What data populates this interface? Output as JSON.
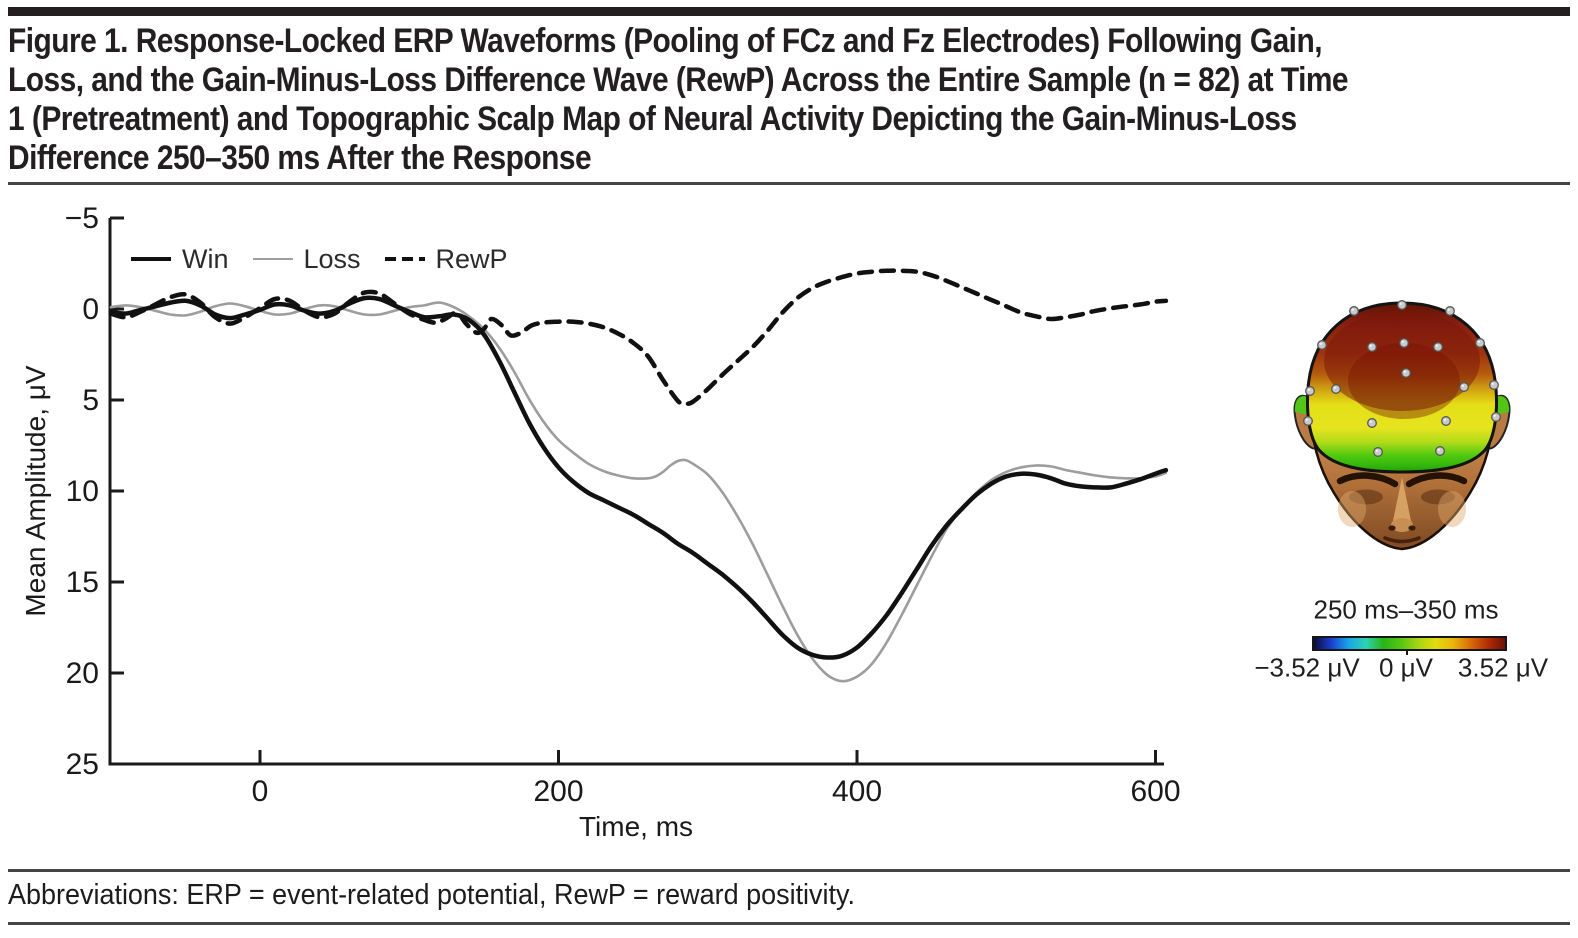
{
  "figure": {
    "title_lines": [
      "Figure 1. Response-Locked ERP Waveforms (Pooling of FCz and Fz Electrodes) Following Gain,",
      "Loss, and the Gain-Minus-Loss Difference Wave (RewP) Across the Entire Sample (n = 82) at Time",
      "1 (Pretreatment) and Topographic Scalp Map of Neural Activity Depicting the Gain-Minus-Loss",
      "Difference 250–350 ms After the Response"
    ],
    "abbreviations": "Abbreviations: ERP = event-related potential, RewP = reward positivity."
  },
  "chart_data": {
    "type": "line",
    "title": "",
    "xlabel": "Time, ms",
    "ylabel": "Mean Amplitude, μV",
    "x_range": [
      -100,
      610
    ],
    "y_range": [
      -5,
      25
    ],
    "y_axis_inverted": true,
    "grid": false,
    "legend_position": "top-left-inside",
    "xticks": [
      0,
      200,
      400,
      600
    ],
    "yticks": [
      -5,
      0,
      5,
      10,
      15,
      20,
      25
    ],
    "axis_color": "#1a1a1a",
    "series": [
      {
        "name": "Loss",
        "style": "solid",
        "color": "#9d9d9d",
        "width": 2.6,
        "points": [
          [
            -100,
            -0.1
          ],
          [
            -90,
            -0.2
          ],
          [
            -80,
            -0.1
          ],
          [
            -70,
            0.1
          ],
          [
            -60,
            0.3
          ],
          [
            -50,
            0.35
          ],
          [
            -40,
            0.15
          ],
          [
            -30,
            -0.15
          ],
          [
            -20,
            -0.3
          ],
          [
            -10,
            -0.15
          ],
          [
            0,
            0.1
          ],
          [
            10,
            0.3
          ],
          [
            20,
            0.25
          ],
          [
            30,
            0.0
          ],
          [
            40,
            -0.2
          ],
          [
            50,
            -0.15
          ],
          [
            60,
            0.1
          ],
          [
            70,
            0.3
          ],
          [
            80,
            0.3
          ],
          [
            90,
            0.1
          ],
          [
            100,
            -0.1
          ],
          [
            110,
            -0.2
          ],
          [
            120,
            -0.35
          ],
          [
            130,
            -0.1
          ],
          [
            140,
            0.4
          ],
          [
            150,
            1.1
          ],
          [
            160,
            2.1
          ],
          [
            170,
            3.4
          ],
          [
            180,
            4.9
          ],
          [
            190,
            6.2
          ],
          [
            200,
            7.2
          ],
          [
            210,
            7.9
          ],
          [
            220,
            8.5
          ],
          [
            230,
            8.9
          ],
          [
            240,
            9.15
          ],
          [
            250,
            9.3
          ],
          [
            260,
            9.3
          ],
          [
            265,
            9.2
          ],
          [
            270,
            8.95
          ],
          [
            275,
            8.6
          ],
          [
            280,
            8.35
          ],
          [
            285,
            8.3
          ],
          [
            290,
            8.5
          ],
          [
            300,
            9.1
          ],
          [
            310,
            10.1
          ],
          [
            320,
            11.4
          ],
          [
            330,
            12.9
          ],
          [
            340,
            14.6
          ],
          [
            350,
            16.3
          ],
          [
            360,
            17.9
          ],
          [
            370,
            19.2
          ],
          [
            380,
            20.1
          ],
          [
            390,
            20.45
          ],
          [
            400,
            20.2
          ],
          [
            410,
            19.5
          ],
          [
            420,
            18.3
          ],
          [
            430,
            16.8
          ],
          [
            440,
            15.2
          ],
          [
            450,
            13.6
          ],
          [
            460,
            12.1
          ],
          [
            470,
            11.0
          ],
          [
            480,
            10.1
          ],
          [
            490,
            9.4
          ],
          [
            500,
            8.95
          ],
          [
            510,
            8.7
          ],
          [
            520,
            8.6
          ],
          [
            530,
            8.65
          ],
          [
            540,
            8.85
          ],
          [
            550,
            9.0
          ],
          [
            560,
            9.15
          ],
          [
            570,
            9.25
          ],
          [
            580,
            9.3
          ],
          [
            590,
            9.3
          ],
          [
            600,
            9.2
          ],
          [
            607,
            9.0
          ]
        ]
      },
      {
        "name": "Win",
        "style": "solid",
        "color": "#111111",
        "width": 4.5,
        "points": [
          [
            -100,
            0.15
          ],
          [
            -90,
            0.25
          ],
          [
            -80,
            0.05
          ],
          [
            -70,
            -0.15
          ],
          [
            -60,
            -0.35
          ],
          [
            -50,
            -0.45
          ],
          [
            -40,
            -0.2
          ],
          [
            -30,
            0.3
          ],
          [
            -20,
            0.5
          ],
          [
            -10,
            0.3
          ],
          [
            0,
            0.05
          ],
          [
            10,
            -0.25
          ],
          [
            20,
            -0.2
          ],
          [
            30,
            0.1
          ],
          [
            40,
            0.25
          ],
          [
            50,
            0.1
          ],
          [
            60,
            -0.3
          ],
          [
            70,
            -0.6
          ],
          [
            80,
            -0.55
          ],
          [
            90,
            -0.2
          ],
          [
            100,
            0.15
          ],
          [
            110,
            0.45
          ],
          [
            120,
            0.4
          ],
          [
            130,
            0.3
          ],
          [
            140,
            0.6
          ],
          [
            150,
            1.4
          ],
          [
            160,
            2.8
          ],
          [
            170,
            4.5
          ],
          [
            180,
            6.2
          ],
          [
            190,
            7.6
          ],
          [
            200,
            8.7
          ],
          [
            210,
            9.5
          ],
          [
            220,
            10.1
          ],
          [
            230,
            10.5
          ],
          [
            240,
            10.9
          ],
          [
            250,
            11.3
          ],
          [
            260,
            11.8
          ],
          [
            270,
            12.3
          ],
          [
            280,
            12.9
          ],
          [
            290,
            13.4
          ],
          [
            300,
            14.0
          ],
          [
            310,
            14.6
          ],
          [
            320,
            15.3
          ],
          [
            330,
            16.1
          ],
          [
            340,
            17.0
          ],
          [
            350,
            17.9
          ],
          [
            360,
            18.6
          ],
          [
            370,
            19.0
          ],
          [
            380,
            19.15
          ],
          [
            390,
            19.05
          ],
          [
            400,
            18.6
          ],
          [
            410,
            17.8
          ],
          [
            420,
            16.8
          ],
          [
            430,
            15.6
          ],
          [
            440,
            14.3
          ],
          [
            450,
            13.0
          ],
          [
            460,
            11.9
          ],
          [
            470,
            11.0
          ],
          [
            480,
            10.2
          ],
          [
            490,
            9.6
          ],
          [
            500,
            9.2
          ],
          [
            510,
            9.05
          ],
          [
            520,
            9.1
          ],
          [
            530,
            9.3
          ],
          [
            540,
            9.6
          ],
          [
            550,
            9.75
          ],
          [
            560,
            9.8
          ],
          [
            570,
            9.8
          ],
          [
            580,
            9.6
          ],
          [
            590,
            9.35
          ],
          [
            600,
            9.05
          ],
          [
            607,
            8.85
          ]
        ]
      },
      {
        "name": "RewP",
        "style": "dashed",
        "color": "#111111",
        "width": 4.5,
        "points": [
          [
            -100,
            0.25
          ],
          [
            -90,
            0.45
          ],
          [
            -80,
            0.15
          ],
          [
            -70,
            -0.25
          ],
          [
            -60,
            -0.65
          ],
          [
            -50,
            -0.8
          ],
          [
            -40,
            -0.35
          ],
          [
            -30,
            0.45
          ],
          [
            -20,
            0.8
          ],
          [
            -10,
            0.45
          ],
          [
            0,
            -0.05
          ],
          [
            10,
            -0.55
          ],
          [
            20,
            -0.45
          ],
          [
            30,
            0.1
          ],
          [
            40,
            0.45
          ],
          [
            50,
            0.25
          ],
          [
            60,
            -0.4
          ],
          [
            70,
            -0.9
          ],
          [
            80,
            -0.85
          ],
          [
            90,
            -0.3
          ],
          [
            100,
            0.25
          ],
          [
            110,
            0.6
          ],
          [
            118,
            0.75
          ],
          [
            125,
            0.5
          ],
          [
            132,
            0.2
          ],
          [
            138,
            0.8
          ],
          [
            145,
            1.3
          ],
          [
            150,
            1.1
          ],
          [
            155,
            0.55
          ],
          [
            162,
            0.9
          ],
          [
            168,
            1.45
          ],
          [
            175,
            1.3
          ],
          [
            182,
            0.9
          ],
          [
            190,
            0.75
          ],
          [
            200,
            0.7
          ],
          [
            210,
            0.7
          ],
          [
            220,
            0.8
          ],
          [
            230,
            1.0
          ],
          [
            240,
            1.35
          ],
          [
            250,
            1.85
          ],
          [
            260,
            2.6
          ],
          [
            270,
            3.9
          ],
          [
            280,
            5.05
          ],
          [
            285,
            5.2
          ],
          [
            290,
            5.1
          ],
          [
            300,
            4.4
          ],
          [
            310,
            3.6
          ],
          [
            320,
            2.85
          ],
          [
            330,
            2.1
          ],
          [
            340,
            1.2
          ],
          [
            350,
            0.2
          ],
          [
            360,
            -0.6
          ],
          [
            370,
            -1.15
          ],
          [
            380,
            -1.5
          ],
          [
            390,
            -1.75
          ],
          [
            400,
            -1.95
          ],
          [
            410,
            -2.05
          ],
          [
            420,
            -2.1
          ],
          [
            430,
            -2.1
          ],
          [
            440,
            -2.05
          ],
          [
            450,
            -1.85
          ],
          [
            460,
            -1.55
          ],
          [
            470,
            -1.2
          ],
          [
            480,
            -0.85
          ],
          [
            490,
            -0.5
          ],
          [
            500,
            -0.15
          ],
          [
            510,
            0.2
          ],
          [
            520,
            0.4
          ],
          [
            530,
            0.55
          ],
          [
            540,
            0.45
          ],
          [
            550,
            0.3
          ],
          [
            560,
            0.1
          ],
          [
            575,
            -0.1
          ],
          [
            590,
            -0.25
          ],
          [
            600,
            -0.4
          ],
          [
            607,
            -0.45
          ]
        ]
      }
    ]
  },
  "topomap": {
    "time_window": "250 ms–350 ms",
    "colorbar": {
      "min_label": "−3.52 μV",
      "mid_label": "0 μV",
      "max_label": "3.52 μV",
      "colormap": "jet",
      "stops": [
        "#0b0b3a",
        "#1b3fd0",
        "#19a6e8",
        "#2fd2b2",
        "#27b514",
        "#57c613",
        "#a8d414",
        "#e0dc12",
        "#eab50c",
        "#d96c08",
        "#b42e06",
        "#6e0f04"
      ]
    },
    "scale_semantics": {
      "positive_peak": "#8e2410",
      "zero": "#2ab212",
      "negative": "#1b3fd0"
    },
    "electrodes": [
      [
        62,
        14
      ],
      [
        110,
        8
      ],
      [
        158,
        14
      ],
      [
        30,
        48
      ],
      [
        80,
        50
      ],
      [
        112,
        46
      ],
      [
        146,
        50
      ],
      [
        188,
        46
      ],
      [
        18,
        94
      ],
      [
        44,
        92
      ],
      [
        114,
        76
      ],
      [
        172,
        90
      ],
      [
        202,
        88
      ],
      [
        80,
        126
      ],
      [
        154,
        124
      ],
      [
        86,
        155
      ],
      [
        148,
        154
      ],
      [
        16,
        124
      ],
      [
        204,
        120
      ]
    ]
  }
}
